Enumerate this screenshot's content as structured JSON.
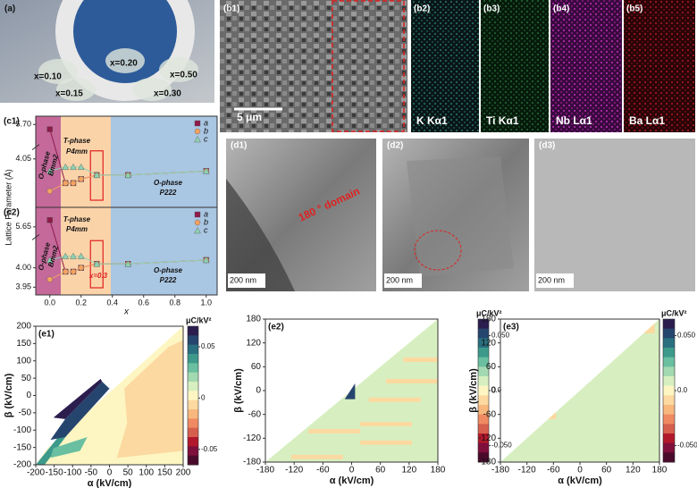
{
  "panels": {
    "a": {
      "label": "(a)",
      "samples": [
        "x=0.10",
        "x=0.20",
        "x=0.50",
        "x=0.15",
        "x=0.30"
      ]
    },
    "b": {
      "labels": [
        "(b1)",
        "(b2)",
        "(b3)",
        "(b4)",
        "(b5)"
      ],
      "scale": "5 μm",
      "elements": [
        "K Kα1",
        "Ti Kα1",
        "Nb Lα1",
        "Ba Lα1"
      ]
    },
    "d": {
      "labels": [
        "(d1)",
        "(d2)",
        "(d3)"
      ],
      "scale": "200 nm",
      "annotation": "180 ° domain"
    }
  },
  "chart_data": [
    {
      "type": "line",
      "label": "(c1)",
      "ylabel": "Lattice Parameter (Å)",
      "x": [
        0,
        0.1,
        0.15,
        0.2,
        0.3,
        0.5,
        1.0
      ],
      "series": [
        {
          "name": "a",
          "color": "#8e1b4a",
          "marker": "square",
          "values": [
            5.68,
            3.99,
            3.99,
            4.0,
            4.01,
            4.01,
            4.02
          ]
        },
        {
          "name": "b",
          "color": "#f4a261",
          "marker": "circle",
          "values": [
            3.97,
            3.99,
            3.99,
            4.0,
            4.01,
            4.01,
            4.02
          ]
        },
        {
          "name": "c",
          "color": "#8fd3b4",
          "marker": "triangle",
          "values": [
            4.02,
            4.03,
            4.03,
            4.03,
            4.01,
            4.01,
            4.02
          ]
        }
      ],
      "xlim": [
        -0.09,
        1.07
      ],
      "ylim": [
        3.93,
        5.72
      ],
      "ybreak": [
        4.07,
        5.62
      ],
      "yticks": [
        {
          "value": 5.7,
          "label": "5.70"
        },
        4.05
      ],
      "regions": [
        {
          "from": -0.09,
          "to": 0.07,
          "color": "#c4699a"
        },
        {
          "from": 0.07,
          "to": 0.39,
          "color": "#fbd3a9"
        },
        {
          "from": 0.39,
          "to": 1.07,
          "color": "#a9c6e2"
        }
      ],
      "highlight": 0.3,
      "annotations": [
        "O-phase",
        "Bmm2",
        "T-phase",
        "P4mm",
        "O-phase",
        "P222"
      ]
    },
    {
      "type": "line",
      "label": "(c2)",
      "xlabel": "x",
      "x": [
        0,
        0.1,
        0.15,
        0.2,
        0.3,
        0.5,
        1.0
      ],
      "series": [
        {
          "name": "a",
          "color": "#8e1b4a",
          "marker": "square",
          "values": [
            5.68,
            3.99,
            3.99,
            4.0,
            4.01,
            4.01,
            4.02
          ]
        },
        {
          "name": "b",
          "color": "#f4a261",
          "marker": "circle",
          "values": [
            3.97,
            3.99,
            3.99,
            4.0,
            4.01,
            4.01,
            4.02
          ]
        },
        {
          "name": "c",
          "color": "#8fd3b4",
          "marker": "triangle",
          "values": [
            4.02,
            4.03,
            4.03,
            4.03,
            4.01,
            4.01,
            4.02
          ]
        }
      ],
      "xlim": [
        -0.09,
        1.07
      ],
      "ylim": [
        3.93,
        5.72
      ],
      "ybreak": [
        4.07,
        5.62
      ],
      "xticks": [
        {
          "value": 0,
          "label": "0.0"
        },
        0.2,
        0.4,
        0.6,
        0.8,
        {
          "value": 1,
          "label": "1.0"
        }
      ],
      "yticks": [
        5.65,
        {
          "value": 4,
          "label": "4.00"
        },
        3.95
      ],
      "regions": [
        {
          "from": -0.09,
          "to": 0.07,
          "color": "#c4699a"
        },
        {
          "from": 0.07,
          "to": 0.39,
          "color": "#fbd3a9"
        },
        {
          "from": 0.39,
          "to": 1.07,
          "color": "#a9c6e2"
        }
      ],
      "highlight": 0.3,
      "annotations": [
        "O-phase",
        "Bmm2",
        "T-phase",
        "P4mm",
        "O-phase",
        "P222",
        "x=0.3"
      ]
    },
    {
      "type": "contour",
      "label": "(e1)",
      "xlabel": "α (kV/cm)",
      "ylabel": "β (kV/cm)",
      "unit": "μC/kV²",
      "xlim": [
        -200,
        200
      ],
      "xticks": [
        -200,
        -150,
        -100,
        -50,
        0,
        50,
        100,
        150,
        200
      ],
      "ylim": [
        -200,
        200
      ],
      "yticks": [
        -200,
        -150,
        -100,
        -50,
        0,
        50,
        100,
        150,
        200
      ],
      "clim": [
        -0.065,
        0.07
      ],
      "cticks": [
        0.05,
        0,
        -0.05
      ],
      "colors": [
        "#2b1d4e",
        "#26456e",
        "#2a6f7f",
        "#3d9a8b",
        "#69bfa0",
        "#a3d9b1",
        "#d7efc0",
        "#fdf6c3",
        "#fcd9a0",
        "#f7b77d",
        "#ef8a62",
        "#d6604d",
        "#b2182b",
        "#7f0f3b",
        "#4a0a2c"
      ]
    },
    {
      "type": "contour",
      "label": "(e2)",
      "xlabel": "α (kV/cm)",
      "ylabel": "β (kV/cm)",
      "unit": "μC/kV²",
      "xlim": [
        -180,
        180
      ],
      "xticks": [
        -180,
        -120,
        -60,
        0,
        60,
        120,
        180
      ],
      "ylim": [
        -180,
        180
      ],
      "yticks": [
        -180,
        -120,
        -60,
        0,
        60,
        120,
        180
      ],
      "clim": [
        -0.065,
        0.065
      ],
      "cticks": [
        {
          "value": 0.05,
          "label": "0.050"
        },
        {
          "value": 0,
          "label": "0.0"
        },
        {
          "value": -0.05,
          "label": "-0.050"
        }
      ],
      "colors": [
        "#2b1d4e",
        "#26456e",
        "#2a6f7f",
        "#3d9a8b",
        "#69bfa0",
        "#a3d9b1",
        "#d7efc0",
        "#fdf6c3",
        "#fcd9a0",
        "#f7b77d",
        "#ef8a62",
        "#d6604d",
        "#b2182b",
        "#7f0f3b",
        "#4a0a2c"
      ]
    },
    {
      "type": "contour",
      "label": "(e3)",
      "xlabel": "α (kV/cm)",
      "ylabel": "β (kV/cm)",
      "unit": "μC/kV²",
      "xlim": [
        -180,
        180
      ],
      "xticks": [
        -180,
        -120,
        -60,
        0,
        60,
        120,
        180
      ],
      "ylim": [
        -180,
        180
      ],
      "yticks": [
        -180,
        -120,
        -60,
        0,
        60,
        120,
        180
      ],
      "clim": [
        -0.065,
        0.065
      ],
      "cticks": [
        {
          "value": 0.05,
          "label": "0.050"
        },
        {
          "value": 0,
          "label": "0.0"
        },
        {
          "value": -0.05,
          "label": "-0.050"
        }
      ],
      "colors": [
        "#2b1d4e",
        "#26456e",
        "#2a6f7f",
        "#3d9a8b",
        "#69bfa0",
        "#a3d9b1",
        "#d7efc0",
        "#fdf6c3",
        "#fcd9a0",
        "#f7b77d",
        "#ef8a62",
        "#d6604d",
        "#b2182b",
        "#7f0f3b",
        "#4a0a2c"
      ]
    }
  ]
}
